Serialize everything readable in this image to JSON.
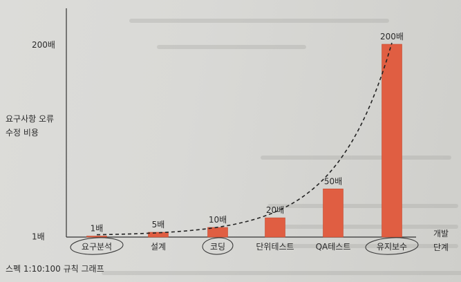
{
  "chart_data": {
    "type": "bar",
    "ylabel": [
      "요구사항 오류",
      "수정 비용"
    ],
    "xlabel": [
      "개발",
      "단계"
    ],
    "y_ticks": [
      {
        "value": 1,
        "label": "1배"
      },
      {
        "value": 200,
        "label": "200배"
      }
    ],
    "categories": [
      "요구분석",
      "설계",
      "코딩",
      "단위테스트",
      "QA테스트",
      "유지보수"
    ],
    "circled_categories": [
      true,
      false,
      true,
      false,
      false,
      true
    ],
    "values": [
      1,
      5,
      10,
      20,
      50,
      200
    ],
    "data_labels": [
      "1배",
      "5배",
      "10배",
      "20배",
      "50배",
      "200배"
    ],
    "ylim": [
      0,
      200
    ],
    "trend_line": "dashed",
    "grid": false,
    "bar_color": "#e05e42"
  },
  "caption": "스펙 1:10:100 규칙 그래프"
}
